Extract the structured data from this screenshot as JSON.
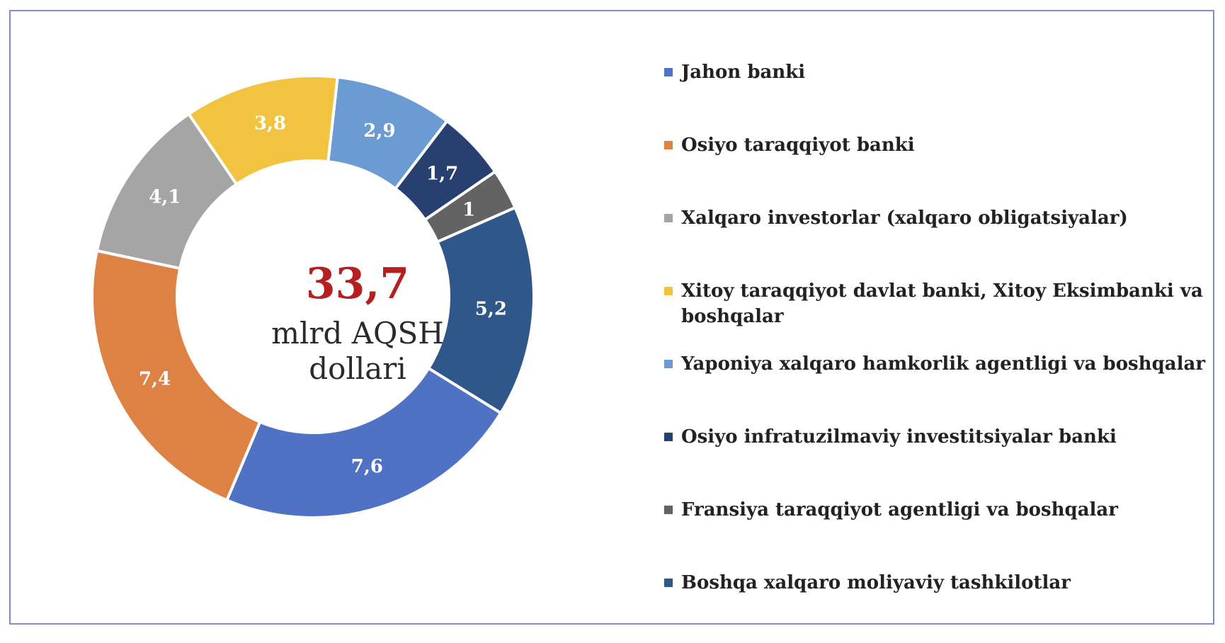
{
  "chart_data": {
    "type": "pie",
    "variant": "donut",
    "total_value": "33,7",
    "total_unit": "mlrd AQSH dollari",
    "categories": [
      "Jahon banki",
      "Osiyo taraqqiyot banki",
      "Xalqaro investorlar (xalqaro obligatsiyalar)",
      "Xitoy taraqqiyot davlat banki, Xitoy Eksimbanki va boshqalar",
      "Yaponiya xalqaro hamkorlik agentligi va boshqalar",
      "Osiyo infratuzilmaviy investitsiyalar banki",
      "Fransiya taraqqiyot agentligi va boshqalar",
      "Boshqa xalqaro moliyaviy tashkilotlar"
    ],
    "values": [
      7.6,
      7.4,
      4.1,
      3.8,
      2.9,
      1.7,
      1,
      5.2
    ],
    "value_labels": [
      "7,6",
      "7,4",
      "4,1",
      "3,8",
      "2,9",
      "1,7",
      "1",
      "5,2"
    ],
    "colors": [
      "#4f72c4",
      "#de8144",
      "#a5a5a5",
      "#f2c241",
      "#6b9bd3",
      "#27406f",
      "#636363",
      "#2f5789"
    ],
    "legend_position": "right"
  }
}
